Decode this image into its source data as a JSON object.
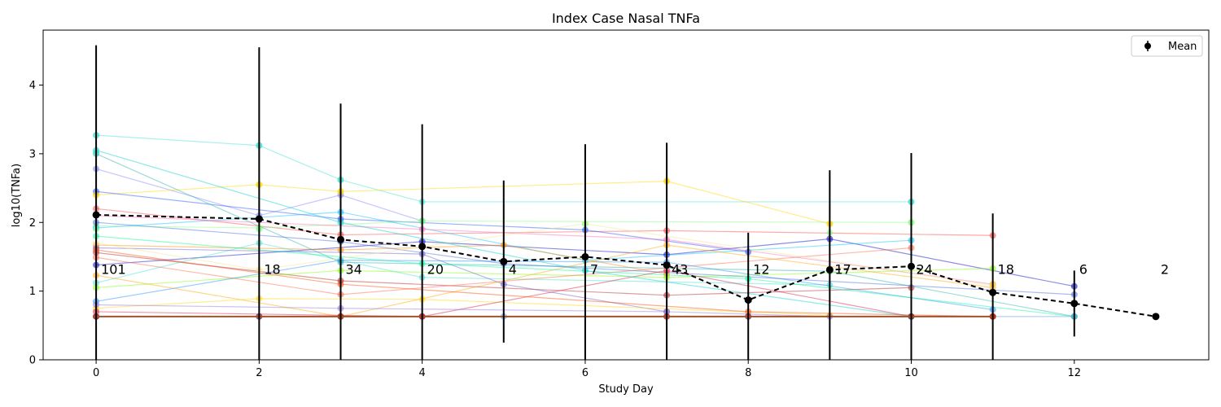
{
  "chart_data": {
    "type": "line",
    "title": "Index Case Nasal TNFa",
    "xlabel": "Study Day",
    "ylabel": "log10(TNFa)",
    "xlim": [
      -0.65,
      13.65
    ],
    "ylim": [
      0,
      4.8
    ],
    "xticks": [
      0,
      2,
      4,
      6,
      8,
      10,
      12
    ],
    "yticks": [
      0,
      1,
      2,
      3,
      4
    ],
    "legend": {
      "label": "Mean",
      "position": "top-right"
    },
    "mean_series": {
      "name": "Mean",
      "x": [
        0,
        2,
        3,
        4,
        5,
        6,
        7,
        8,
        9,
        10,
        11,
        12,
        13
      ],
      "y": [
        2.11,
        2.05,
        1.75,
        1.65,
        1.43,
        1.5,
        1.38,
        0.87,
        1.31,
        1.36,
        0.98,
        0.82,
        0.63
      ],
      "err": [
        2.47,
        2.5,
        1.98,
        1.78,
        1.18,
        1.64,
        1.78,
        0.98,
        1.45,
        1.65,
        1.15,
        0.48,
        0.0
      ]
    },
    "counts": [
      {
        "x": 0,
        "label": "101"
      },
      {
        "x": 2,
        "label": "18"
      },
      {
        "x": 3,
        "label": "34"
      },
      {
        "x": 4,
        "label": "20"
      },
      {
        "x": 5,
        "label": "4"
      },
      {
        "x": 6,
        "label": "7"
      },
      {
        "x": 7,
        "label": "43"
      },
      {
        "x": 8,
        "label": "12"
      },
      {
        "x": 9,
        "label": "17"
      },
      {
        "x": 10,
        "label": "24"
      },
      {
        "x": 11,
        "label": "18"
      },
      {
        "x": 12,
        "label": "6"
      },
      {
        "x": 13,
        "label": "2"
      }
    ],
    "count_label_y": 1.32,
    "subject_series": [
      {
        "color": "#8080ff",
        "points": [
          [
            0,
            2.78
          ],
          [
            2,
            2.1
          ],
          [
            3,
            2.4
          ],
          [
            4,
            2.02
          ]
        ]
      },
      {
        "color": "#40e0d0",
        "points": [
          [
            0,
            3.27
          ],
          [
            2,
            3.12
          ],
          [
            3,
            2.62
          ],
          [
            4,
            2.3
          ],
          [
            10,
            2.3
          ]
        ]
      },
      {
        "color": "#ffd700",
        "points": [
          [
            0,
            2.4
          ],
          [
            2,
            2.55
          ],
          [
            3,
            2.45
          ],
          [
            7,
            2.6
          ],
          [
            9,
            1.98
          ]
        ]
      },
      {
        "color": "#ff4040",
        "points": [
          [
            0,
            2.2
          ],
          [
            3,
            1.82
          ],
          [
            7,
            1.88
          ],
          [
            11,
            1.81
          ]
        ]
      },
      {
        "color": "#2050ff",
        "points": [
          [
            0,
            2.45
          ],
          [
            3,
            2.05
          ],
          [
            6,
            1.89
          ],
          [
            8,
            1.57
          ]
        ]
      },
      {
        "color": "#80ff80",
        "points": [
          [
            0,
            1.95
          ],
          [
            2,
            1.92
          ],
          [
            4,
            2.02
          ],
          [
            10,
            2.0
          ]
        ]
      },
      {
        "color": "#0000cd",
        "points": [
          [
            0,
            1.38
          ],
          [
            4,
            1.72
          ],
          [
            7,
            1.53
          ],
          [
            9,
            1.76
          ],
          [
            12,
            1.07
          ]
        ]
      },
      {
        "color": "#00c0ff",
        "points": [
          [
            0,
            1.92
          ],
          [
            3,
            2.15
          ],
          [
            6,
            1.45
          ],
          [
            10,
            1.74
          ]
        ]
      },
      {
        "color": "#ff8c00",
        "points": [
          [
            0,
            1.67
          ],
          [
            3,
            1.6
          ],
          [
            5,
            1.67
          ],
          [
            7,
            1.25
          ]
        ]
      },
      {
        "color": "#b22222",
        "points": [
          [
            0,
            1.56
          ],
          [
            3,
            1.15
          ],
          [
            7,
            0.94
          ],
          [
            10,
            1.05
          ]
        ]
      },
      {
        "color": "#40e0d0",
        "points": [
          [
            0,
            1.12
          ],
          [
            2,
            1.7
          ],
          [
            4,
            1.2
          ],
          [
            9,
            1.09
          ]
        ]
      },
      {
        "color": "#7fff00",
        "points": [
          [
            0,
            1.05
          ],
          [
            3,
            1.3
          ],
          [
            7,
            1.2
          ],
          [
            11,
            1.33
          ]
        ]
      },
      {
        "color": "#6a5acd",
        "points": [
          [
            0,
            1.63
          ],
          [
            4,
            1.54
          ],
          [
            5,
            1.1
          ],
          [
            7,
            0.7
          ]
        ]
      },
      {
        "color": "#ff6347",
        "points": [
          [
            0,
            1.49
          ],
          [
            3,
            0.95
          ],
          [
            10,
            1.63
          ]
        ]
      },
      {
        "color": "#1e90ff",
        "points": [
          [
            0,
            0.85
          ],
          [
            3,
            1.45
          ],
          [
            7,
            1.42
          ],
          [
            11,
            0.73
          ]
        ]
      },
      {
        "color": "#20b2aa",
        "points": [
          [
            0,
            3.0
          ],
          [
            3,
            1.42
          ],
          [
            9,
            1.29
          ],
          [
            12,
            0.63
          ]
        ]
      },
      {
        "color": "#ffa500",
        "points": [
          [
            0,
            1.23
          ],
          [
            3,
            0.63
          ],
          [
            7,
            1.67
          ],
          [
            11,
            1.05
          ]
        ]
      },
      {
        "color": "#ffd700",
        "points": [
          [
            0,
            0.75
          ],
          [
            2,
            0.89
          ],
          [
            4,
            0.88
          ],
          [
            9,
            0.65
          ]
        ]
      },
      {
        "color": "#ff69b4",
        "points": [
          [
            0,
            2.1
          ],
          [
            4,
            1.9
          ],
          [
            7,
            1.75
          ],
          [
            11,
            1.1
          ]
        ]
      },
      {
        "color": "#4169e1",
        "points": [
          [
            0,
            2.0
          ],
          [
            3,
            1.72
          ],
          [
            5,
            1.4
          ],
          [
            12,
            0.95
          ]
        ]
      },
      {
        "color": "#00fa9a",
        "points": [
          [
            0,
            1.8
          ],
          [
            4,
            1.4
          ],
          [
            8,
            1.18
          ],
          [
            12,
            0.63
          ]
        ]
      },
      {
        "color": "#f0e68c",
        "points": [
          [
            0,
            1.7
          ],
          [
            2,
            1.31
          ],
          [
            6,
            1.98
          ],
          [
            11,
            1.08
          ]
        ]
      },
      {
        "color": "#dc143c",
        "points": [
          [
            0,
            0.7
          ],
          [
            4,
            0.63
          ],
          [
            7,
            1.3
          ],
          [
            10,
            0.63
          ]
        ]
      },
      {
        "color": "#6495ed",
        "points": [
          [
            0,
            0.63
          ],
          [
            2,
            0.63
          ],
          [
            5,
            0.63
          ],
          [
            8,
            0.63
          ],
          [
            12,
            0.63
          ]
        ]
      },
      {
        "color": "#d2691e",
        "points": [
          [
            0,
            0.63
          ],
          [
            3,
            0.63
          ],
          [
            7,
            0.63
          ],
          [
            11,
            0.63
          ]
        ]
      },
      {
        "color": "#00ced1",
        "points": [
          [
            0,
            3.05
          ],
          [
            3,
            2.0
          ],
          [
            6,
            1.3
          ],
          [
            10,
            0.63
          ]
        ]
      },
      {
        "color": "#ff4500",
        "points": [
          [
            0,
            1.6
          ],
          [
            3,
            1.1
          ],
          [
            8,
            0.7
          ],
          [
            11,
            0.63
          ]
        ]
      },
      {
        "color": "#9370db",
        "points": [
          [
            0,
            0.8
          ],
          [
            3,
            0.75
          ],
          [
            7,
            0.7
          ],
          [
            9,
            0.63
          ]
        ]
      }
    ],
    "marker_only_points": [
      {
        "color": "#40e0d0",
        "points": [
          [
            0,
            3.27
          ],
          [
            0,
            3.02
          ],
          [
            2,
            3.12
          ],
          [
            3,
            2.62
          ],
          [
            10,
            2.3
          ]
        ]
      },
      {
        "color": "#ffd700",
        "points": [
          [
            0,
            2.4
          ],
          [
            2,
            2.55
          ],
          [
            3,
            2.45
          ],
          [
            7,
            2.6
          ],
          [
            9,
            1.98
          ],
          [
            11,
            1.1
          ]
        ]
      },
      {
        "color": "#80ff80",
        "points": [
          [
            0,
            1.9
          ],
          [
            2,
            1.9
          ],
          [
            4,
            2.02
          ],
          [
            6,
            1.98
          ],
          [
            10,
            2.0
          ],
          [
            9,
            1.85
          ]
        ]
      },
      {
        "color": "#8b0000",
        "points": [
          [
            0,
            0.63
          ],
          [
            2,
            0.63
          ],
          [
            3,
            0.63
          ],
          [
            4,
            0.63
          ],
          [
            7,
            0.63
          ],
          [
            8,
            0.63
          ],
          [
            10,
            0.63
          ],
          [
            11,
            0.63
          ]
        ]
      }
    ],
    "baseline": {
      "y": 0.63,
      "x_from": 0,
      "x_to": 11,
      "color": "#a0522d"
    }
  }
}
